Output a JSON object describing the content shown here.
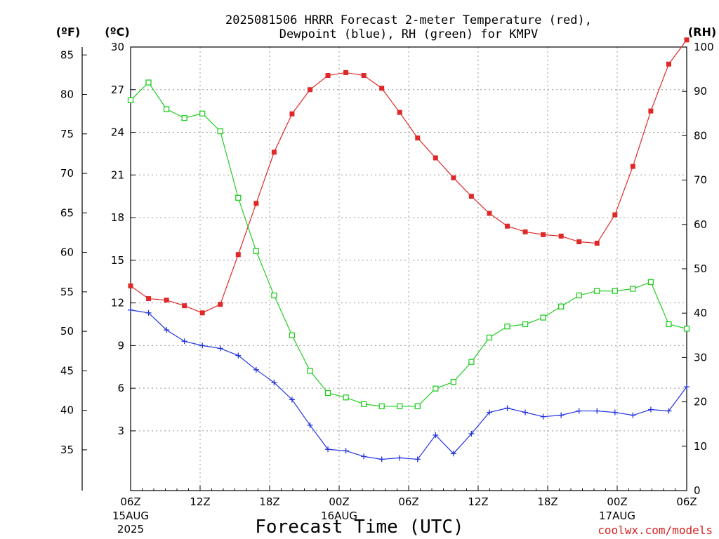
{
  "chart_data": {
    "type": "line",
    "title": [
      "2025081506 HRRR Forecast 2-meter Temperature (red),",
      "Dewpoint (blue), RH (green) for KMPV"
    ],
    "xlabel": "Forecast Time (UTC)",
    "credit": "coolwx.com/models",
    "units": {
      "fahrenheit": "(ºF)",
      "celsius": "(ºC)",
      "rh": "(RH)"
    },
    "x_ticks": [
      {
        "hour": 0,
        "label": "06Z",
        "date": "15AUG",
        "year": "2025"
      },
      {
        "hour": 6,
        "label": "12Z"
      },
      {
        "hour": 12,
        "label": "18Z"
      },
      {
        "hour": 18,
        "label": "00Z",
        "date": "16AUG"
      },
      {
        "hour": 24,
        "label": "06Z"
      },
      {
        "hour": 30,
        "label": "12Z"
      },
      {
        "hour": 36,
        "label": "18Z"
      },
      {
        "hour": 42,
        "label": "00Z",
        "date": "17AUG"
      },
      {
        "hour": 48,
        "label": "06Z"
      }
    ],
    "xlim": [
      0,
      48
    ],
    "celsius_axis": {
      "ylim": [
        -1.2,
        30
      ],
      "ticks": [
        3,
        6,
        9,
        12,
        15,
        18,
        21,
        24,
        27,
        30
      ]
    },
    "fahrenheit_axis": {
      "ticks": [
        35,
        40,
        45,
        50,
        55,
        60,
        65,
        70,
        75,
        80,
        85
      ]
    },
    "rh_axis": {
      "ylim": [
        0,
        100
      ],
      "ticks": [
        0,
        10,
        20,
        30,
        40,
        50,
        60,
        70,
        80,
        90,
        100
      ]
    },
    "grid": true,
    "series": [
      {
        "name": "Temperature (red)",
        "axis": "celsius",
        "color": "#e02828",
        "marker": "filled-square",
        "values": [
          13.2,
          12.3,
          12.2,
          11.8,
          11.3,
          11.9,
          15.4,
          19.0,
          22.6,
          25.3,
          27.0,
          28.0,
          28.2,
          28.0,
          27.1,
          25.4,
          23.6,
          22.2,
          20.8,
          19.5,
          18.3,
          17.4,
          17.0,
          16.8,
          16.7,
          16.3,
          16.2,
          18.2,
          21.6,
          25.5,
          28.8,
          30.5
        ]
      },
      {
        "name": "Dewpoint (blue)",
        "axis": "celsius",
        "color": "#2233dd",
        "marker": "plus",
        "values": [
          11.5,
          11.3,
          10.1,
          9.3,
          9.0,
          8.8,
          8.3,
          7.3,
          6.4,
          5.2,
          3.4,
          1.7,
          1.6,
          1.2,
          1.0,
          1.1,
          1.0,
          2.7,
          1.4,
          2.8,
          4.3,
          4.6,
          4.3,
          4.0,
          4.1,
          4.4,
          4.4,
          4.3,
          4.1,
          4.5,
          4.4,
          6.1
        ]
      },
      {
        "name": "RH (green)",
        "axis": "rh",
        "color": "#22cc22",
        "marker": "open-square",
        "values": [
          88,
          92,
          86,
          84,
          85,
          81,
          66,
          54,
          44,
          35,
          27,
          22,
          21,
          19.5,
          19,
          19,
          19,
          23,
          24.5,
          29,
          34.5,
          37,
          37.5,
          39,
          41.5,
          44,
          45,
          45,
          45.5,
          47,
          37.5,
          36.5
        ]
      }
    ]
  }
}
